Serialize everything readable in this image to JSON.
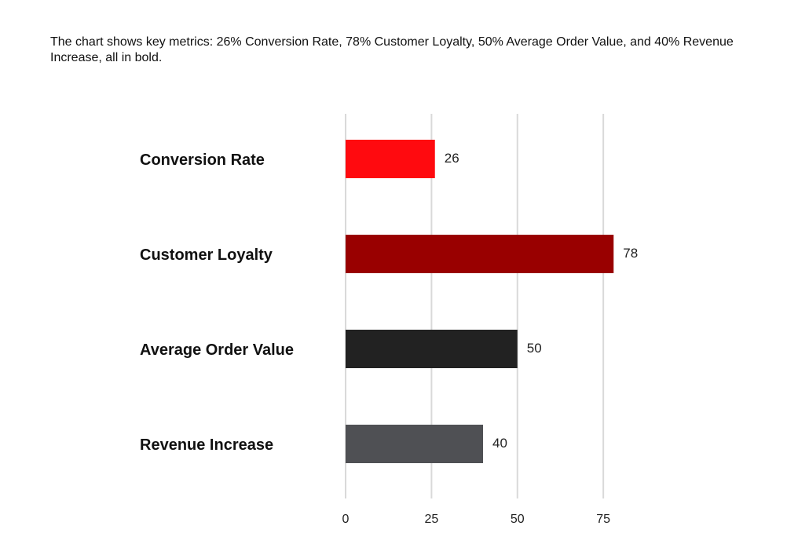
{
  "caption": "The chart shows key metrics: 26% Conversion Rate, 78% Customer Loyalty, 50% Average Order Value, and 40% Revenue Increase, all in bold.",
  "chart_data": {
    "type": "bar",
    "orientation": "horizontal",
    "categories": [
      "Conversion Rate",
      "Customer Loyalty",
      "Average Order Value",
      "Revenue Increase"
    ],
    "values": [
      26,
      78,
      50,
      40
    ],
    "colors": [
      "#ff0a0f",
      "#990000",
      "#222222",
      "#4f5054"
    ],
    "xlim": [
      0,
      80
    ],
    "xticks": [
      0,
      25,
      50,
      75
    ],
    "grid": "vertical",
    "data_labels": true,
    "title": "",
    "xlabel": "",
    "ylabel": ""
  }
}
